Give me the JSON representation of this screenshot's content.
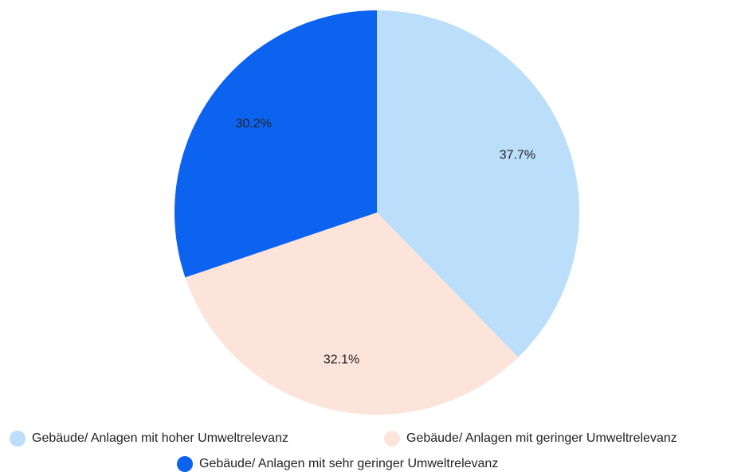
{
  "chart_data": {
    "type": "pie",
    "categories": [
      "Gebäude/ Anlagen mit hoher Umweltrelevanz",
      "Gebäude/ Anlagen mit geringer Umweltrelevanz",
      "Gebäude/ Anlagen mit sehr geringer Umweltrelevanz"
    ],
    "values": [
      37.7,
      32.1,
      30.2
    ],
    "value_labels": [
      "37.7%",
      "32.1%",
      "30.2%"
    ],
    "colors": [
      "#bbdefb",
      "#fde4da",
      "#0b63f0"
    ],
    "legend": "bottom"
  }
}
